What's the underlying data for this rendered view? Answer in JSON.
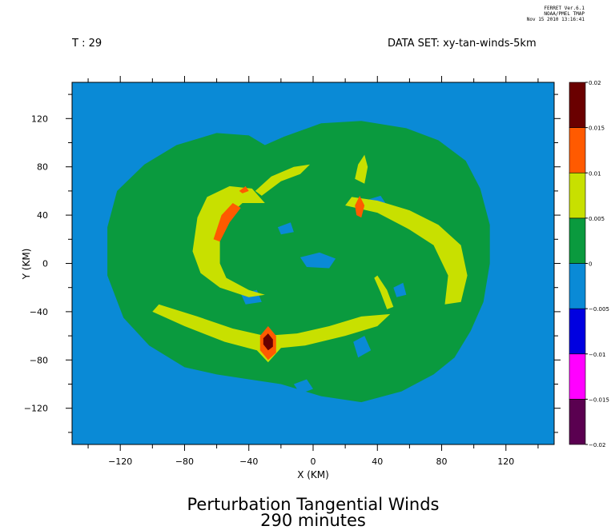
{
  "stamp": [
    "FERRET Ver.6.1",
    "NOAA/PMEL TMAP",
    "Nov 15 2010 13:16:41"
  ],
  "header": {
    "time_label": "T : 29",
    "dataset_label": "DATA SET: xy-tan-winds-5km"
  },
  "title": {
    "line1": "Perturbation Tangential Winds",
    "line2": "290 minutes"
  },
  "chart_data": {
    "type": "heatmap",
    "title": "Perturbation Tangential Winds",
    "subtitle": "290 minutes",
    "xlabel": "X (KM)",
    "ylabel": "Y (KM)",
    "xlim": [
      -150,
      150
    ],
    "ylim": [
      -150,
      150
    ],
    "x_ticks": [
      -120,
      -80,
      -40,
      0,
      40,
      80,
      120
    ],
    "y_ticks": [
      120,
      80,
      40,
      0,
      -40,
      -80,
      -120
    ],
    "x_tick_labels": [
      "−120",
      "−80",
      "−40",
      "0",
      "40",
      "80",
      "120"
    ],
    "y_tick_labels": [
      "120",
      "80",
      "40",
      "0",
      "−40",
      "−80",
      "−120"
    ],
    "grid": false,
    "background_value_range": [
      -0.005,
      0
    ],
    "colorbar": {
      "levels": [
        -0.02,
        -0.015,
        -0.01,
        -0.005,
        0,
        0.005,
        0.01,
        0.015,
        0.02
      ],
      "level_labels": [
        "−0.02",
        "−0.015",
        "−0.01",
        "−0.005",
        "0",
        "0.005",
        "0.01",
        "0.015",
        "0.02"
      ],
      "colors": [
        "#5a0050",
        "#ff00ff",
        "#0000e0",
        "#0a8ad6",
        "#0a9a3e",
        "#c8e000",
        "#ff5a00",
        "#6a0000"
      ]
    },
    "regions": [
      {
        "value_range": [
          0,
          0.005
        ],
        "polygons": [
          [
            [
              -128,
              30
            ],
            [
              -122,
              60
            ],
            [
              -105,
              82
            ],
            [
              -85,
              98
            ],
            [
              -60,
              108
            ],
            [
              -40,
              106
            ],
            [
              -30,
              98
            ],
            [
              -18,
              105
            ],
            [
              5,
              116
            ],
            [
              30,
              118
            ],
            [
              58,
              112
            ],
            [
              78,
              102
            ],
            [
              95,
              85
            ],
            [
              104,
              62
            ],
            [
              110,
              32
            ],
            [
              110,
              0
            ],
            [
              106,
              -32
            ],
            [
              98,
              -56
            ],
            [
              88,
              -78
            ],
            [
              75,
              -92
            ],
            [
              55,
              -106
            ],
            [
              30,
              -115
            ],
            [
              5,
              -110
            ],
            [
              -20,
              -100
            ],
            [
              -40,
              -96
            ],
            [
              -60,
              -92
            ],
            [
              -80,
              -86
            ],
            [
              -102,
              -68
            ],
            [
              -118,
              -45
            ],
            [
              -128,
              -10
            ]
          ]
        ]
      },
      {
        "value_range": [
          -0.005,
          0
        ],
        "polygons": [
          [
            [
              -8,
              5
            ],
            [
              4,
              9
            ],
            [
              14,
              4
            ],
            [
              10,
              -4
            ],
            [
              -4,
              -3
            ]
          ],
          [
            [
              -45,
              -25
            ],
            [
              -35,
              -22
            ],
            [
              -32,
              -32
            ],
            [
              -42,
              -34
            ]
          ],
          [
            [
              32,
              52
            ],
            [
              42,
              56
            ],
            [
              46,
              48
            ],
            [
              38,
              44
            ]
          ],
          [
            [
              -22,
              30
            ],
            [
              -14,
              34
            ],
            [
              -12,
              26
            ],
            [
              -20,
              24
            ]
          ],
          [
            [
              25,
              -65
            ],
            [
              32,
              -60
            ],
            [
              36,
              -72
            ],
            [
              28,
              -78
            ]
          ],
          [
            [
              -12,
              -100
            ],
            [
              -4,
              -96
            ],
            [
              0,
              -104
            ],
            [
              -8,
              -108
            ]
          ],
          [
            [
              50,
              -20
            ],
            [
              56,
              -16
            ],
            [
              58,
              -26
            ],
            [
              52,
              -28
            ]
          ]
        ]
      },
      {
        "value_range": [
          0.005,
          0.01
        ],
        "polygons": [
          [
            [
              -75,
              10
            ],
            [
              -72,
              38
            ],
            [
              -66,
              55
            ],
            [
              -52,
              64
            ],
            [
              -38,
              62
            ],
            [
              -30,
              50
            ],
            [
              -44,
              50
            ],
            [
              -52,
              40
            ],
            [
              -58,
              22
            ],
            [
              -58,
              0
            ],
            [
              -54,
              -12
            ],
            [
              -40,
              -22
            ],
            [
              -30,
              -26
            ],
            [
              -40,
              -28
            ],
            [
              -58,
              -20
            ],
            [
              -70,
              -8
            ]
          ],
          [
            [
              -36,
              60
            ],
            [
              -26,
              72
            ],
            [
              -12,
              80
            ],
            [
              -2,
              82
            ],
            [
              -8,
              74
            ],
            [
              -20,
              68
            ],
            [
              -32,
              56
            ]
          ],
          [
            [
              -100,
              -40
            ],
            [
              -80,
              -52
            ],
            [
              -55,
              -65
            ],
            [
              -35,
              -72
            ],
            [
              -28,
              -82
            ],
            [
              -20,
              -70
            ],
            [
              -5,
              -68
            ],
            [
              20,
              -60
            ],
            [
              40,
              -52
            ],
            [
              48,
              -42
            ],
            [
              30,
              -44
            ],
            [
              10,
              -52
            ],
            [
              -10,
              -58
            ],
            [
              -30,
              -60
            ],
            [
              -50,
              -54
            ],
            [
              -72,
              -44
            ],
            [
              -96,
              -34
            ]
          ],
          [
            [
              20,
              48
            ],
            [
              40,
              42
            ],
            [
              60,
              28
            ],
            [
              75,
              15
            ],
            [
              84,
              -10
            ],
            [
              82,
              -34
            ],
            [
              92,
              -32
            ],
            [
              96,
              -10
            ],
            [
              92,
              15
            ],
            [
              78,
              32
            ],
            [
              60,
              44
            ],
            [
              40,
              52
            ],
            [
              24,
              55
            ]
          ],
          [
            [
              26,
              70
            ],
            [
              28,
              82
            ],
            [
              32,
              90
            ],
            [
              34,
              80
            ],
            [
              32,
              66
            ]
          ],
          [
            [
              40,
              -10
            ],
            [
              46,
              -22
            ],
            [
              50,
              -36
            ],
            [
              46,
              -38
            ],
            [
              42,
              -24
            ],
            [
              38,
              -12
            ]
          ]
        ]
      },
      {
        "value_range": [
          0.01,
          0.015
        ],
        "polygons": [
          [
            [
              -62,
              20
            ],
            [
              -57,
              40
            ],
            [
              -50,
              50
            ],
            [
              -45,
              46
            ],
            [
              -52,
              34
            ],
            [
              -58,
              18
            ]
          ],
          [
            [
              -33,
              -60
            ],
            [
              -28,
              -52
            ],
            [
              -23,
              -60
            ],
            [
              -23,
              -74
            ],
            [
              -28,
              -80
            ],
            [
              -33,
              -72
            ]
          ],
          [
            [
              26,
              48
            ],
            [
              29,
              56
            ],
            [
              32,
              48
            ],
            [
              30,
              38
            ],
            [
              27,
              40
            ]
          ],
          [
            [
              -46,
              60
            ],
            [
              -42,
              64
            ],
            [
              -40,
              60
            ],
            [
              -44,
              58
            ]
          ]
        ]
      },
      {
        "value_range": [
          0.015,
          0.02
        ],
        "polygons": [
          [
            [
              -31,
              -62
            ],
            [
              -28,
              -58
            ],
            [
              -25,
              -63
            ],
            [
              -25,
              -69
            ],
            [
              -28,
              -72
            ],
            [
              -31,
              -67
            ]
          ]
        ]
      }
    ]
  }
}
